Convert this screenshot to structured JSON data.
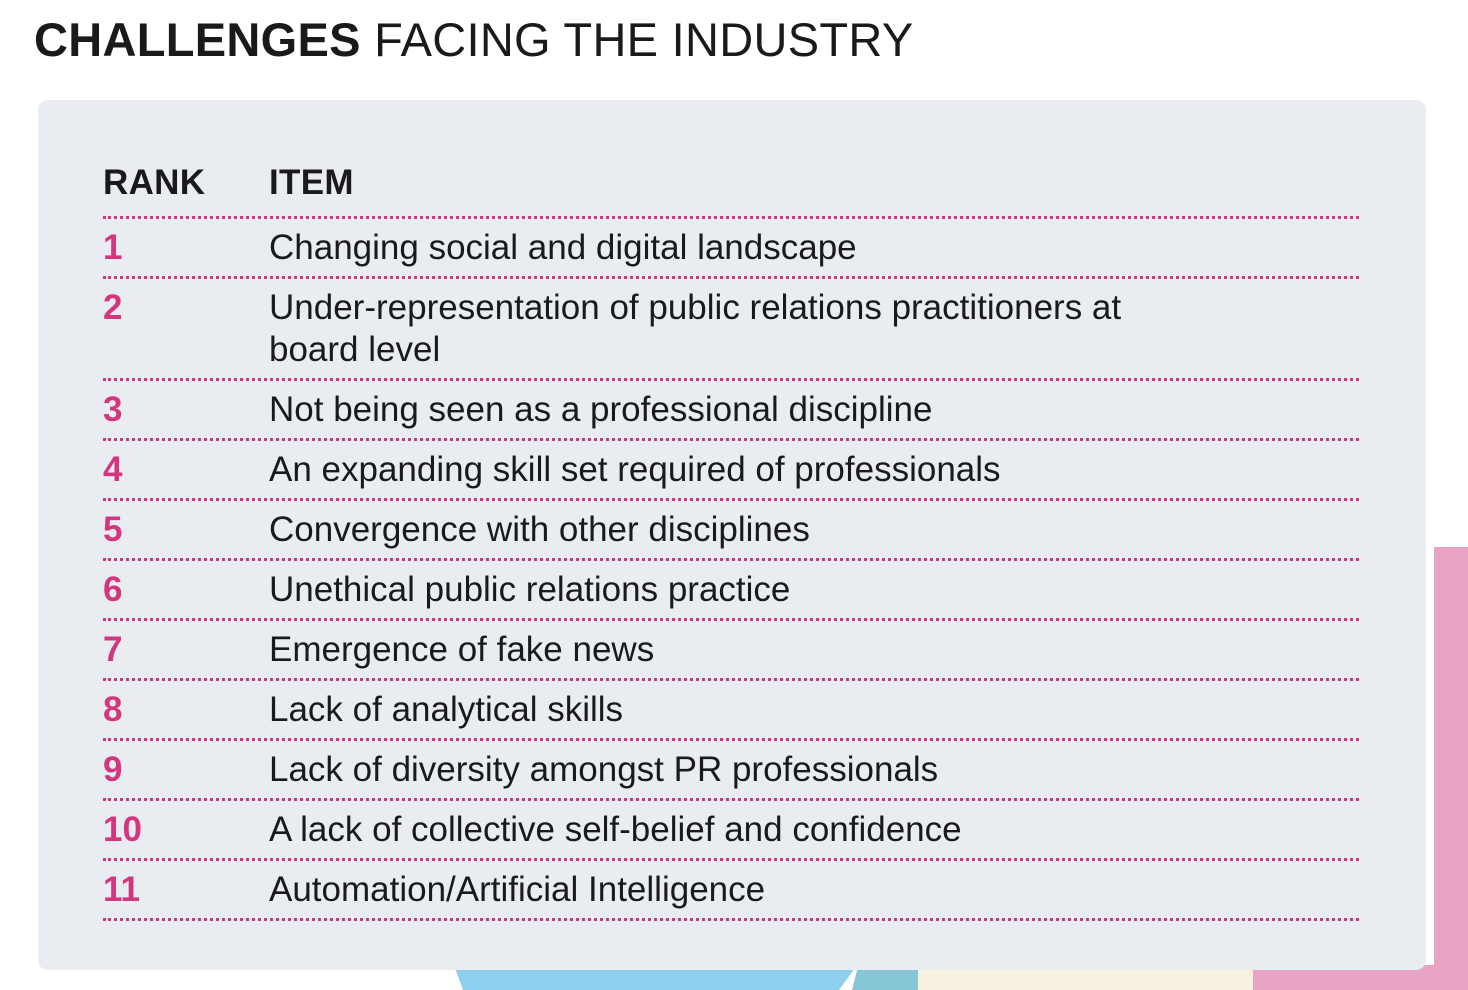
{
  "title": {
    "bold": "CHALLENGES",
    "regular": " FACING THE INDUSTRY"
  },
  "table": {
    "headers": {
      "rank": "RANK",
      "item": "ITEM"
    },
    "rows": [
      {
        "rank": "1",
        "item": "Changing social and digital landscape"
      },
      {
        "rank": "2",
        "item": "Under-representation of public relations practitioners at board level"
      },
      {
        "rank": "3",
        "item": "Not being seen as a professional discipline"
      },
      {
        "rank": "4",
        "item": "An expanding skill set required of professionals"
      },
      {
        "rank": "5",
        "item": "Convergence with other disciplines"
      },
      {
        "rank": "6",
        "item": "Unethical public relations practice"
      },
      {
        "rank": "7",
        "item": "Emergence of fake news"
      },
      {
        "rank": "8",
        "item": "Lack of analytical skills"
      },
      {
        "rank": "9",
        "item": "Lack of diversity amongst PR professionals"
      },
      {
        "rank": "10",
        "item": "A lack of collective self-belief and confidence"
      },
      {
        "rank": "11",
        "item": "Automation/Artificial Intelligence"
      }
    ]
  },
  "colors": {
    "accent": "#d4357f",
    "panel": "#e9edf2",
    "text": "#1a1a1a"
  }
}
